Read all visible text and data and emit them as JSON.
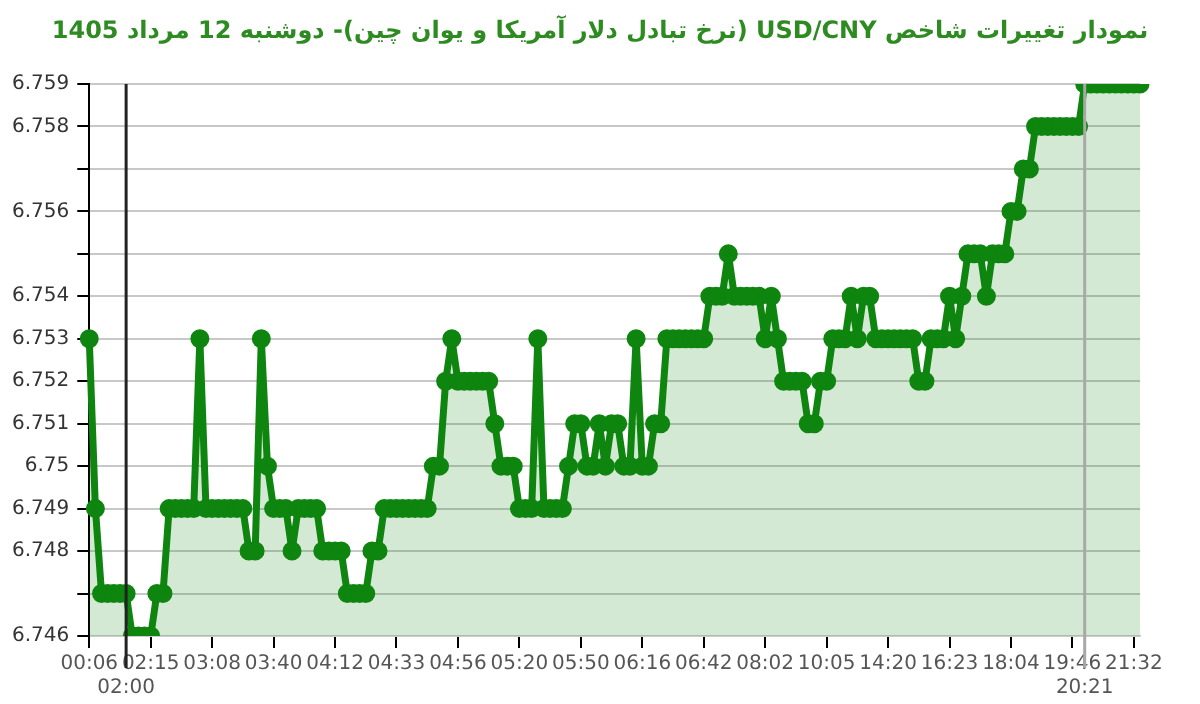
{
  "chart_data": {
    "type": "area",
    "title": "نمودار تغییرات شاخص USD/CNY (نرخ تبادل دلار آمریکا و یوان چین)- دوشنبه 12 مرداد 1405",
    "categories": [
      "00:06",
      null,
      null,
      null,
      null,
      null,
      "02:00",
      null,
      null,
      null,
      "02:15",
      null,
      null,
      null,
      null,
      null,
      null,
      null,
      null,
      null,
      "03:08",
      null,
      null,
      null,
      null,
      null,
      null,
      null,
      null,
      null,
      "03:40",
      null,
      null,
      null,
      null,
      null,
      null,
      null,
      null,
      null,
      "04:12",
      null,
      null,
      null,
      null,
      null,
      null,
      null,
      null,
      null,
      "04:33",
      null,
      null,
      null,
      null,
      null,
      null,
      null,
      null,
      null,
      "04:56",
      null,
      null,
      null,
      null,
      null,
      null,
      null,
      null,
      null,
      "05:20",
      null,
      null,
      null,
      null,
      null,
      null,
      null,
      null,
      null,
      "05:50",
      null,
      null,
      null,
      null,
      null,
      null,
      null,
      null,
      null,
      "06:16",
      null,
      null,
      null,
      null,
      null,
      null,
      null,
      null,
      null,
      "06:42",
      null,
      null,
      null,
      null,
      null,
      null,
      null,
      null,
      null,
      "08:02",
      null,
      null,
      null,
      null,
      null,
      null,
      null,
      null,
      null,
      "10:05",
      null,
      null,
      null,
      null,
      null,
      null,
      null,
      null,
      null,
      "14:20",
      null,
      null,
      null,
      null,
      null,
      null,
      null,
      null,
      null,
      "16:23",
      null,
      null,
      null,
      null,
      null,
      null,
      null,
      null,
      null,
      "18:04",
      null,
      null,
      null,
      null,
      null,
      null,
      null,
      null,
      null,
      "19:46",
      null,
      "20:21",
      null,
      null,
      null,
      null,
      null,
      null,
      null,
      "21:32",
      null
    ],
    "series": [
      {
        "color": "#0e850e",
        "values": [
          6.753,
          6.749,
          6.747,
          6.747,
          6.747,
          6.747,
          6.747,
          6.746,
          6.746,
          6.746,
          6.746,
          6.747,
          6.747,
          6.749,
          6.749,
          6.749,
          6.749,
          6.749,
          6.753,
          6.749,
          6.749,
          6.749,
          6.749,
          6.749,
          6.749,
          6.749,
          6.748,
          6.748,
          6.753,
          6.75,
          6.749,
          6.749,
          6.749,
          6.748,
          6.749,
          6.749,
          6.749,
          6.749,
          6.748,
          6.748,
          6.748,
          6.748,
          6.747,
          6.747,
          6.747,
          6.747,
          6.748,
          6.748,
          6.749,
          6.749,
          6.749,
          6.749,
          6.749,
          6.749,
          6.749,
          6.749,
          6.75,
          6.75,
          6.752,
          6.753,
          6.752,
          6.752,
          6.752,
          6.752,
          6.752,
          6.752,
          6.751,
          6.75,
          6.75,
          6.75,
          6.749,
          6.749,
          6.749,
          6.753,
          6.749,
          6.749,
          6.749,
          6.749,
          6.75,
          6.751,
          6.751,
          6.75,
          6.75,
          6.751,
          6.75,
          6.751,
          6.751,
          6.75,
          6.75,
          6.753,
          6.75,
          6.75,
          6.751,
          6.751,
          6.753,
          6.753,
          6.753,
          6.753,
          6.753,
          6.753,
          6.753,
          6.754,
          6.754,
          6.754,
          6.755,
          6.754,
          6.754,
          6.754,
          6.754,
          6.754,
          6.753,
          6.754,
          6.753,
          6.752,
          6.752,
          6.752,
          6.752,
          6.751,
          6.751,
          6.752,
          6.752,
          6.753,
          6.753,
          6.753,
          6.754,
          6.753,
          6.754,
          6.754,
          6.753,
          6.753,
          6.753,
          6.753,
          6.753,
          6.753,
          6.753,
          6.752,
          6.752,
          6.753,
          6.753,
          6.753,
          6.754,
          6.753,
          6.754,
          6.755,
          6.755,
          6.755,
          6.754,
          6.755,
          6.755,
          6.755,
          6.756,
          6.756,
          6.757,
          6.757,
          6.758,
          6.758,
          6.758,
          6.758,
          6.758,
          6.758,
          6.758,
          6.758,
          6.759,
          6.759,
          6.759,
          6.759,
          6.759,
          6.759,
          6.759,
          6.759,
          6.759,
          6.759
        ]
      }
    ],
    "ylim": [
      6.746,
      6.759
    ],
    "yticks": [
      6.746,
      {
        "value": 6.747,
        "label": null
      },
      6.748,
      6.749,
      6.75,
      6.751,
      6.752,
      6.753,
      6.754,
      {
        "value": 6.755,
        "label": null
      },
      6.756,
      {
        "value": 6.757,
        "label": null
      },
      6.758,
      6.759
    ],
    "ref_lines": [
      {
        "axis": "x",
        "value": "02:00",
        "color": "#222222"
      },
      {
        "axis": "x",
        "value": "20:21",
        "color": "#a8a8a8"
      }
    ],
    "grid": "y",
    "marker": "circle",
    "legend": false
  }
}
